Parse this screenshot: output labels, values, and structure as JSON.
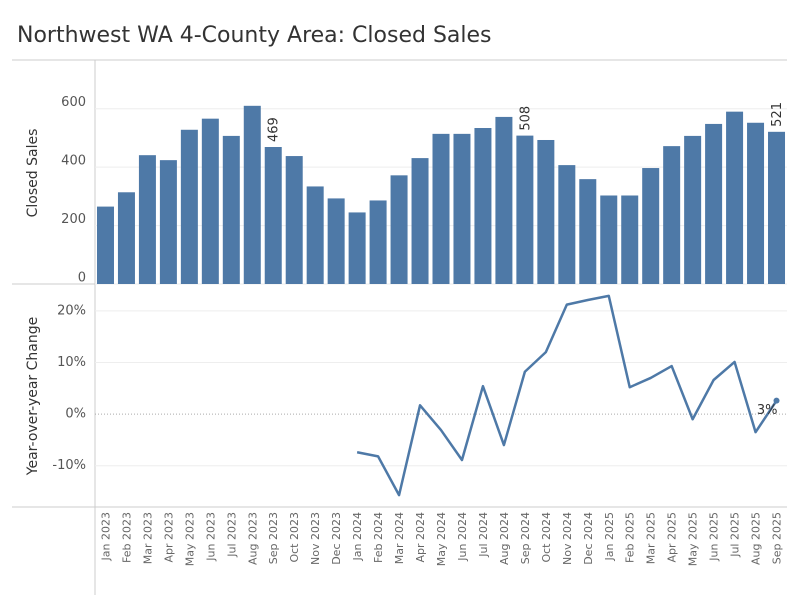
{
  "chart_data": {
    "title": "Northwest WA 4-County Area: Closed Sales",
    "categories": [
      "Jan 2023",
      "Feb 2023",
      "Mar 2023",
      "Apr 2023",
      "May 2023",
      "Jun 2023",
      "Jul 2023",
      "Aug 2023",
      "Sep 2023",
      "Oct 2023",
      "Nov 2023",
      "Dec 2023",
      "Jan 2024",
      "Feb 2024",
      "Mar 2024",
      "Apr 2024",
      "May 2024",
      "Jun 2024",
      "Jul 2024",
      "Aug 2024",
      "Sep 2024",
      "Oct 2024",
      "Nov 2024",
      "Dec 2024",
      "Jan 2025",
      "Feb 2025",
      "Mar 2025",
      "Apr 2025",
      "May 2025",
      "Jun 2025",
      "Jul 2025",
      "Aug 2025",
      "Sep 2025"
    ],
    "panels": [
      {
        "type": "bar",
        "y_label": "Closed Sales",
        "color": "#4e79a7",
        "values": [
          265,
          314,
          441,
          424,
          528,
          566,
          507,
          610,
          469,
          438,
          334,
          293,
          245,
          286,
          372,
          431,
          514,
          514,
          534,
          572,
          508,
          493,
          407,
          359,
          303,
          303,
          397,
          472,
          507,
          548,
          590,
          552,
          521
        ],
        "value_labels": [
          null,
          null,
          null,
          null,
          null,
          null,
          null,
          null,
          "469",
          null,
          null,
          null,
          null,
          null,
          null,
          null,
          null,
          null,
          null,
          null,
          "508",
          null,
          null,
          null,
          null,
          null,
          null,
          null,
          null,
          null,
          null,
          null,
          "521"
        ],
        "ylim": [
          0,
          760
        ],
        "yticks": [
          0,
          200,
          400,
          600
        ],
        "grid": true
      },
      {
        "type": "line",
        "y_label": "Year-over-year Change",
        "color": "#4e79a7",
        "values": [
          null,
          null,
          null,
          null,
          null,
          null,
          null,
          null,
          null,
          null,
          null,
          null,
          -7.4,
          -8.2,
          -15.7,
          1.7,
          -3.1,
          -8.9,
          5.4,
          -6.0,
          8.2,
          12.0,
          21.2,
          22.1,
          22.9,
          5.2,
          7.0,
          9.3,
          -1.0,
          6.6,
          10.1,
          -3.5,
          2.6
        ],
        "value_labels": [
          null,
          null,
          null,
          null,
          null,
          null,
          null,
          null,
          null,
          null,
          null,
          null,
          null,
          null,
          null,
          null,
          null,
          null,
          null,
          null,
          null,
          null,
          null,
          null,
          null,
          null,
          null,
          null,
          null,
          null,
          null,
          null,
          "3%"
        ],
        "ylim": [
          -18,
          25
        ],
        "yticks": [
          {
            "value": -10,
            "label": "-10%"
          },
          {
            "value": 0,
            "label": "0%"
          },
          {
            "value": 10,
            "label": "10%"
          },
          {
            "value": 20,
            "label": "20%"
          }
        ],
        "grid": true
      }
    ]
  }
}
